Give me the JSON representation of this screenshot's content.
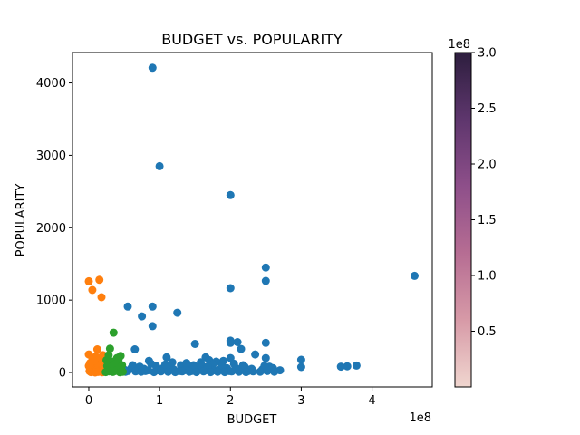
{
  "chart_data": {
    "type": "scatter",
    "title": "BUDGET vs. POPULARITY",
    "xlabel": "BUDGET",
    "ylabel": "POPULARITY",
    "x_offset_label": "1e8",
    "xlim": [
      -0.23,
      4.85
    ],
    "ylim": [
      -200,
      4420
    ],
    "x_ticks": [
      0,
      1,
      2,
      3,
      4
    ],
    "y_ticks": [
      0,
      1000,
      2000,
      3000,
      4000
    ],
    "grid": false,
    "series": [
      {
        "color": "#1f77b4",
        "points": [
          [
            0.9,
            4210
          ],
          [
            1.0,
            2850
          ],
          [
            2.0,
            2450
          ],
          [
            2.5,
            1450
          ],
          [
            2.5,
            1265
          ],
          [
            4.6,
            1335
          ],
          [
            2.0,
            1165
          ],
          [
            0.55,
            910
          ],
          [
            0.9,
            910
          ],
          [
            1.25,
            825
          ],
          [
            0.75,
            775
          ],
          [
            0.9,
            640
          ],
          [
            0.65,
            320
          ],
          [
            1.5,
            395
          ],
          [
            2.0,
            440
          ],
          [
            2.0,
            410
          ],
          [
            2.1,
            420
          ],
          [
            2.15,
            325
          ],
          [
            2.5,
            410
          ],
          [
            2.35,
            250
          ],
          [
            2.5,
            200
          ],
          [
            3.0,
            175
          ],
          [
            3.0,
            75
          ],
          [
            3.56,
            80
          ],
          [
            3.65,
            85
          ],
          [
            3.78,
            95
          ],
          [
            2.7,
            30
          ],
          [
            2.55,
            80
          ],
          [
            2.6,
            60
          ],
          [
            1.65,
            210
          ],
          [
            1.7,
            170
          ],
          [
            1.8,
            150
          ],
          [
            1.9,
            160
          ],
          [
            2.0,
            200
          ],
          [
            1.1,
            210
          ],
          [
            0.85,
            160
          ],
          [
            0.6,
            60
          ],
          [
            0.7,
            40
          ],
          [
            0.8,
            20
          ],
          [
            0.95,
            90
          ],
          [
            1.05,
            60
          ],
          [
            1.15,
            80
          ],
          [
            1.2,
            40
          ],
          [
            1.3,
            100
          ],
          [
            1.35,
            30
          ],
          [
            1.4,
            70
          ],
          [
            1.45,
            20
          ],
          [
            1.55,
            50
          ],
          [
            1.6,
            90
          ],
          [
            1.65,
            30
          ],
          [
            1.75,
            110
          ],
          [
            1.85,
            40
          ],
          [
            1.95,
            60
          ],
          [
            2.05,
            120
          ],
          [
            2.1,
            30
          ],
          [
            2.2,
            80
          ],
          [
            2.25,
            20
          ],
          [
            2.3,
            50
          ],
          [
            2.45,
            40
          ],
          [
            0.55,
            20
          ],
          [
            0.62,
            100
          ],
          [
            0.72,
            80
          ],
          [
            0.78,
            50
          ],
          [
            0.88,
            120
          ],
          [
            0.98,
            30
          ],
          [
            1.08,
            110
          ],
          [
            1.18,
            140
          ],
          [
            1.28,
            20
          ],
          [
            1.38,
            130
          ],
          [
            1.48,
            100
          ],
          [
            1.58,
            140
          ],
          [
            1.68,
            80
          ],
          [
            1.78,
            30
          ],
          [
            1.88,
            90
          ],
          [
            1.98,
            20
          ],
          [
            2.08,
            60
          ],
          [
            2.18,
            100
          ],
          [
            2.28,
            40
          ],
          [
            2.48,
            90
          ],
          [
            0.5,
            40
          ],
          [
            0.52,
            10
          ],
          [
            0.66,
            15
          ],
          [
            0.74,
            10
          ],
          [
            0.84,
            30
          ],
          [
            0.92,
            5
          ],
          [
            1.02,
            15
          ],
          [
            1.12,
            10
          ],
          [
            1.22,
            5
          ],
          [
            1.32,
            15
          ],
          [
            1.42,
            10
          ],
          [
            1.52,
            5
          ],
          [
            1.62,
            15
          ],
          [
            1.72,
            5
          ],
          [
            1.82,
            10
          ],
          [
            1.92,
            5
          ],
          [
            2.02,
            15
          ],
          [
            2.12,
            10
          ],
          [
            2.22,
            5
          ],
          [
            2.32,
            15
          ],
          [
            2.42,
            10
          ],
          [
            2.52,
            20
          ],
          [
            2.62,
            10
          ]
        ]
      },
      {
        "color": "#ff7f0e",
        "points": [
          [
            0.0,
            1260
          ],
          [
            0.15,
            1280
          ],
          [
            0.05,
            1140
          ],
          [
            0.18,
            1040
          ],
          [
            0.12,
            320
          ],
          [
            0.0,
            250
          ],
          [
            0.05,
            200
          ],
          [
            0.1,
            220
          ],
          [
            0.15,
            180
          ],
          [
            0.2,
            240
          ],
          [
            0.02,
            130
          ],
          [
            0.08,
            150
          ],
          [
            0.12,
            100
          ],
          [
            0.18,
            120
          ],
          [
            0.22,
            80
          ],
          [
            0.0,
            90
          ],
          [
            0.04,
            60
          ],
          [
            0.1,
            50
          ],
          [
            0.14,
            70
          ],
          [
            0.2,
            40
          ],
          [
            0.01,
            20
          ],
          [
            0.06,
            10
          ],
          [
            0.11,
            30
          ],
          [
            0.16,
            15
          ],
          [
            0.21,
            25
          ],
          [
            0.03,
            5
          ],
          [
            0.09,
            0
          ],
          [
            0.13,
            8
          ],
          [
            0.19,
            3
          ],
          [
            0.23,
            12
          ]
        ]
      },
      {
        "color": "#2ca02c",
        "points": [
          [
            0.35,
            550
          ],
          [
            0.3,
            330
          ],
          [
            0.4,
            200
          ],
          [
            0.45,
            230
          ],
          [
            0.25,
            170
          ],
          [
            0.28,
            240
          ],
          [
            0.33,
            150
          ],
          [
            0.38,
            120
          ],
          [
            0.42,
            180
          ],
          [
            0.47,
            100
          ],
          [
            0.26,
            90
          ],
          [
            0.31,
            70
          ],
          [
            0.36,
            110
          ],
          [
            0.41,
            60
          ],
          [
            0.46,
            80
          ],
          [
            0.27,
            30
          ],
          [
            0.32,
            40
          ],
          [
            0.37,
            20
          ],
          [
            0.43,
            50
          ],
          [
            0.48,
            10
          ],
          [
            0.24,
            5
          ],
          [
            0.29,
            15
          ],
          [
            0.34,
            8
          ],
          [
            0.39,
            25
          ],
          [
            0.44,
            3
          ]
        ]
      }
    ],
    "colorbar": {
      "offset_label": "1e8",
      "min": 0,
      "max": 3.0,
      "ticks": [
        "0.5",
        "1.0",
        "1.5",
        "2.0",
        "2.5",
        "3.0"
      ],
      "tick_values": [
        0.5,
        1.0,
        1.5,
        2.0,
        2.5,
        3.0
      ],
      "colors": [
        "#f0d6cf",
        "#d79aa7",
        "#b66d93",
        "#8e4f8a",
        "#5e366d",
        "#2d1e3e"
      ]
    }
  }
}
